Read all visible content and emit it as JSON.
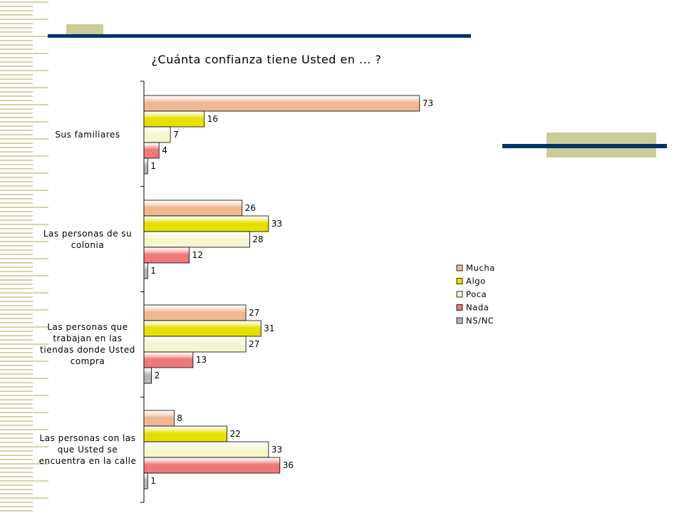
{
  "chart_data": {
    "type": "bar",
    "orientation": "horizontal",
    "title": "¿Cuánta confianza tiene Usted en ... ?",
    "categories": [
      [
        "Sus familiares"
      ],
      [
        "Las personas de su",
        "colonia"
      ],
      [
        "Las personas que",
        "trabajan en las",
        "tiendas donde Usted",
        "compra"
      ],
      [
        "Las personas con las",
        "que Usted se",
        "encuentra en la calle"
      ]
    ],
    "series": [
      {
        "name": "Mucha",
        "color": "#f0b890",
        "values": [
          73,
          26,
          27,
          8
        ]
      },
      {
        "name": "Algo",
        "color": "#e6e000",
        "values": [
          16,
          33,
          31,
          22
        ]
      },
      {
        "name": "Poca",
        "color": "#f5f5d0",
        "values": [
          7,
          28,
          27,
          33
        ]
      },
      {
        "name": "Nada",
        "color": "#f07878",
        "values": [
          4,
          12,
          13,
          36
        ]
      },
      {
        "name": "NS/NC",
        "color": "#b8b8b8",
        "values": [
          1,
          1,
          2,
          1
        ]
      }
    ],
    "xlim": [
      0,
      100
    ],
    "grid": false,
    "legend_position": "right"
  },
  "theme": {
    "stripe_color": "#d4d4aa",
    "accent_olive": "#cccc99",
    "accent_navy": "#003366"
  }
}
